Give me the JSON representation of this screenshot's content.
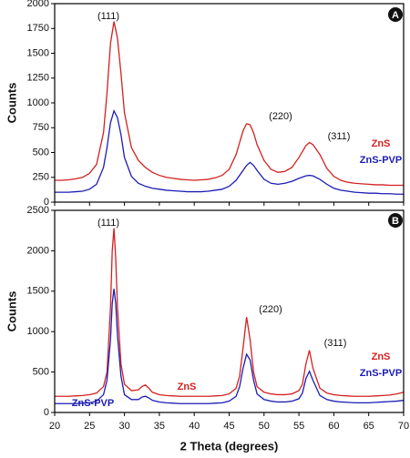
{
  "chart_data": [
    {
      "type": "line",
      "y_label": "Counts",
      "panel_label": "A",
      "show_xtick_labels": false,
      "annotations": [
        "(111)",
        "(220)",
        "(311)"
      ],
      "x": [
        20,
        21,
        22,
        23,
        24,
        25,
        26,
        27,
        27.5,
        28,
        28.5,
        29,
        29.5,
        30,
        31,
        32,
        33,
        34,
        35,
        36,
        37,
        38,
        39,
        40,
        41,
        42,
        43,
        44,
        45,
        46,
        47,
        47.5,
        48,
        48.5,
        49,
        50,
        51,
        52,
        53,
        54,
        55,
        56,
        56.5,
        57,
        58,
        59,
        60,
        61,
        62,
        63,
        64,
        65,
        66,
        67,
        68,
        69,
        70
      ],
      "series": [
        {
          "name": "ZnS",
          "color": "#d42020",
          "values": [
            220,
            220,
            225,
            235,
            250,
            290,
            380,
            700,
            1100,
            1600,
            1820,
            1650,
            1300,
            900,
            550,
            420,
            350,
            300,
            270,
            250,
            240,
            230,
            225,
            220,
            225,
            230,
            245,
            270,
            330,
            480,
            720,
            790,
            780,
            700,
            580,
            420,
            330,
            300,
            310,
            350,
            450,
            570,
            600,
            580,
            480,
            340,
            260,
            220,
            200,
            190,
            185,
            180,
            175,
            175,
            170,
            170,
            170
          ]
        },
        {
          "name": "ZnS-PVP",
          "color": "#1c1cb4",
          "values": [
            100,
            100,
            100,
            105,
            110,
            130,
            180,
            350,
            550,
            800,
            920,
            850,
            680,
            450,
            260,
            190,
            160,
            140,
            130,
            120,
            115,
            110,
            105,
            105,
            105,
            110,
            120,
            130,
            160,
            220,
            320,
            370,
            400,
            370,
            320,
            230,
            190,
            180,
            190,
            210,
            240,
            265,
            270,
            265,
            230,
            180,
            140,
            120,
            110,
            100,
            95,
            90,
            90,
            85,
            85,
            80,
            80
          ]
        }
      ],
      "xlim": [
        20,
        70
      ],
      "xticks": [
        20,
        25,
        30,
        35,
        40,
        45,
        50,
        55,
        60,
        65,
        70
      ],
      "ylim": [
        0,
        2000
      ],
      "yticks": [
        0,
        250,
        500,
        750,
        1000,
        1250,
        1500,
        1750,
        2000
      ]
    },
    {
      "type": "line",
      "y_label": "Counts",
      "x_label": "2 Theta (degrees)",
      "panel_label": "B",
      "show_xtick_labels": true,
      "annotations": [
        "(111)",
        "(220)",
        "(311)",
        "ZnS",
        "ZnS-PVP"
      ],
      "x": [
        20,
        21,
        22,
        23,
        24,
        25,
        26,
        27,
        27.5,
        28,
        28.25,
        28.5,
        28.75,
        29,
        29.5,
        30,
        31,
        32,
        32.5,
        33,
        33.5,
        34,
        35,
        36,
        37,
        38,
        39,
        40,
        41,
        42,
        43,
        44,
        45,
        46,
        46.5,
        47,
        47.5,
        48,
        48.5,
        49,
        50,
        51,
        52,
        53,
        54,
        55,
        55.5,
        56,
        56.5,
        57,
        58,
        59,
        60,
        61,
        62,
        63,
        64,
        65,
        66,
        67,
        68,
        69,
        70
      ],
      "series": [
        {
          "name": "ZnS",
          "color": "#d42020",
          "values": [
            200,
            200,
            200,
            205,
            210,
            220,
            240,
            320,
            500,
            1300,
            2000,
            2280,
            1900,
            1300,
            600,
            350,
            270,
            280,
            320,
            340,
            300,
            250,
            220,
            210,
            205,
            200,
            200,
            200,
            200,
            200,
            205,
            210,
            230,
            300,
            450,
            800,
            1180,
            900,
            500,
            320,
            250,
            230,
            220,
            220,
            230,
            270,
            350,
            600,
            770,
            550,
            300,
            240,
            220,
            210,
            205,
            200,
            200,
            200,
            205,
            210,
            215,
            230,
            250
          ]
        },
        {
          "name": "ZnS-PVP",
          "color": "#1c1cb4",
          "values": [
            110,
            110,
            110,
            110,
            115,
            120,
            140,
            220,
            400,
            900,
            1350,
            1530,
            1350,
            950,
            450,
            220,
            160,
            160,
            190,
            200,
            180,
            150,
            130,
            120,
            115,
            110,
            110,
            110,
            110,
            110,
            115,
            120,
            140,
            200,
            320,
            550,
            720,
            650,
            400,
            230,
            160,
            140,
            130,
            130,
            140,
            170,
            240,
            420,
            510,
            400,
            210,
            160,
            140,
            130,
            125,
            120,
            120,
            120,
            125,
            130,
            135,
            140,
            150
          ]
        }
      ],
      "xlim": [
        20,
        70
      ],
      "xticks": [
        20,
        25,
        30,
        35,
        40,
        45,
        50,
        55,
        60,
        65,
        70
      ],
      "ylim": [
        0,
        2500
      ],
      "yticks": [
        0,
        500,
        1000,
        1500,
        2000,
        2500
      ]
    }
  ]
}
